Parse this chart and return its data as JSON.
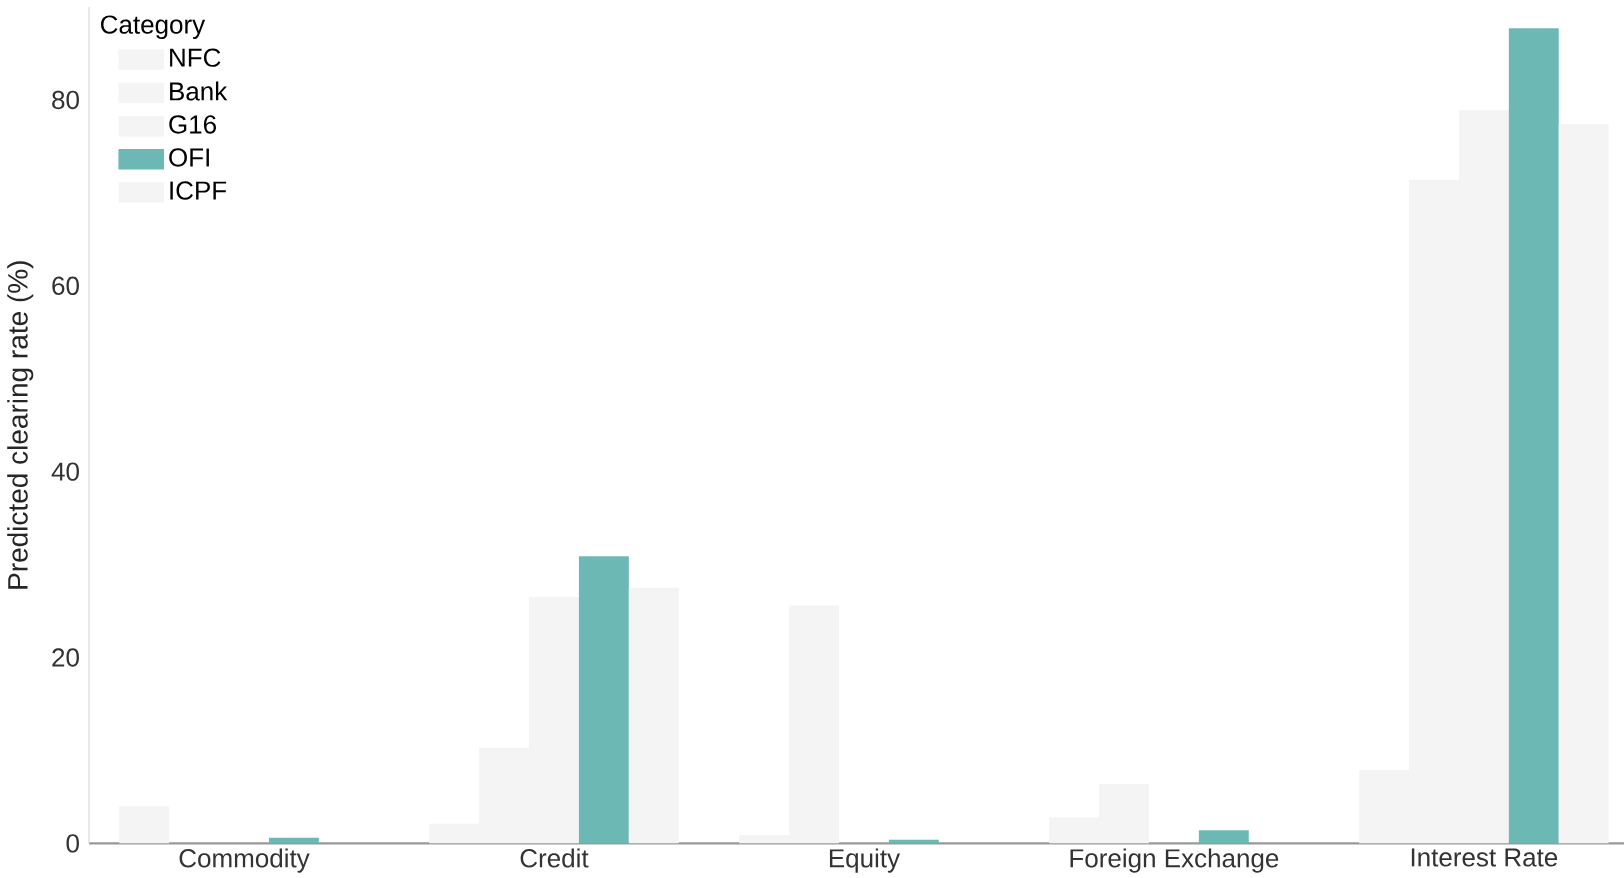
{
  "chart_data": {
    "type": "bar",
    "ylabel": "Predicted clearing rate (%)",
    "legend_title": "Category",
    "legend": "top left",
    "categories": [
      "Commodity",
      "Credit",
      "Equity",
      "Foreign Exchange",
      "Interest Rate"
    ],
    "series": [
      {
        "name": "NFC",
        "color": "#f4f4f4",
        "values": [
          4.0,
          2.1,
          0.9,
          2.8,
          7.9
        ]
      },
      {
        "name": "Bank",
        "color": "#f4f4f4",
        "values": [
          0,
          10.3,
          25.6,
          6.4,
          71.4
        ]
      },
      {
        "name": "G16",
        "color": "#f4f4f4",
        "values": [
          0,
          26.5,
          0,
          0,
          78.9
        ]
      },
      {
        "name": "OFI",
        "color": "#6cb8b5",
        "values": [
          0.6,
          30.9,
          0.4,
          1.4,
          87.7
        ]
      },
      {
        "name": "ICPF",
        "color": "#f4f4f4",
        "values": [
          0,
          27.5,
          0,
          0,
          77.4
        ]
      }
    ],
    "ylim": [
      0,
      90
    ],
    "yticks": [
      0,
      20,
      40,
      60,
      80
    ]
  }
}
